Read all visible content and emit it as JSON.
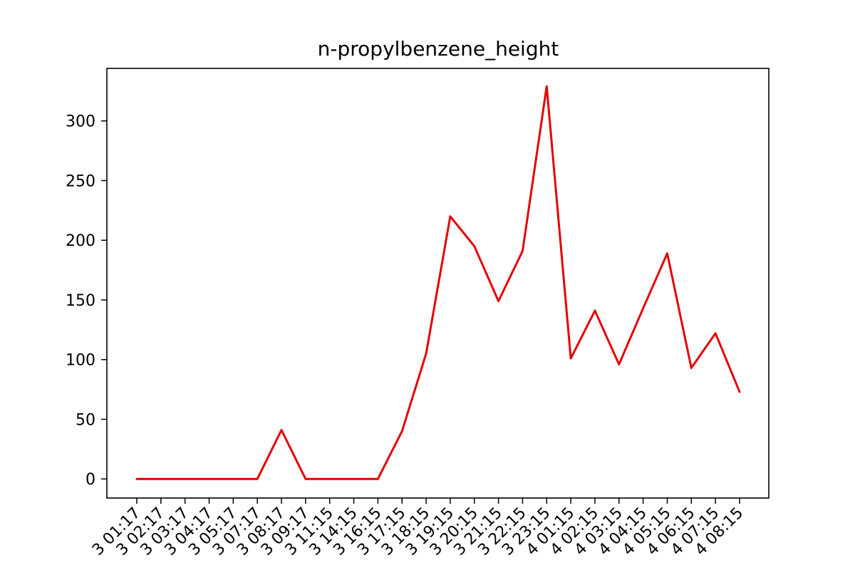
{
  "chart_data": {
    "type": "line",
    "title": "n-propylbenzene_height",
    "xlabel": "",
    "ylabel": "",
    "categories": [
      "3 01:17",
      "3 02:17",
      "3 03:17",
      "3 04:17",
      "3 05:17",
      "3 07:17",
      "3 08:17",
      "3 09:17",
      "3 11:15",
      "3 14:15",
      "3 16:15",
      "3 17:15",
      "3 18:15",
      "3 19:15",
      "3 20:15",
      "3 21:15",
      "3 22:15",
      "3 23:15",
      "4 01:15",
      "4 02:15",
      "4 03:15",
      "4 04:15",
      "4 05:15",
      "4 06:15",
      "4 07:15",
      "4 08:15"
    ],
    "series": [
      {
        "color": "#e60000",
        "values": [
          0,
          0,
          0,
          0,
          0,
          0,
          41,
          0,
          0,
          0,
          0,
          40,
          105,
          220,
          195,
          149,
          191,
          329,
          101,
          141,
          96,
          143,
          189,
          93,
          122,
          73
        ]
      }
    ],
    "ylim": [
      -16,
      344
    ],
    "yticks": [
      0,
      50,
      100,
      150,
      200,
      250,
      300
    ],
    "grid": false,
    "legend": "none"
  }
}
